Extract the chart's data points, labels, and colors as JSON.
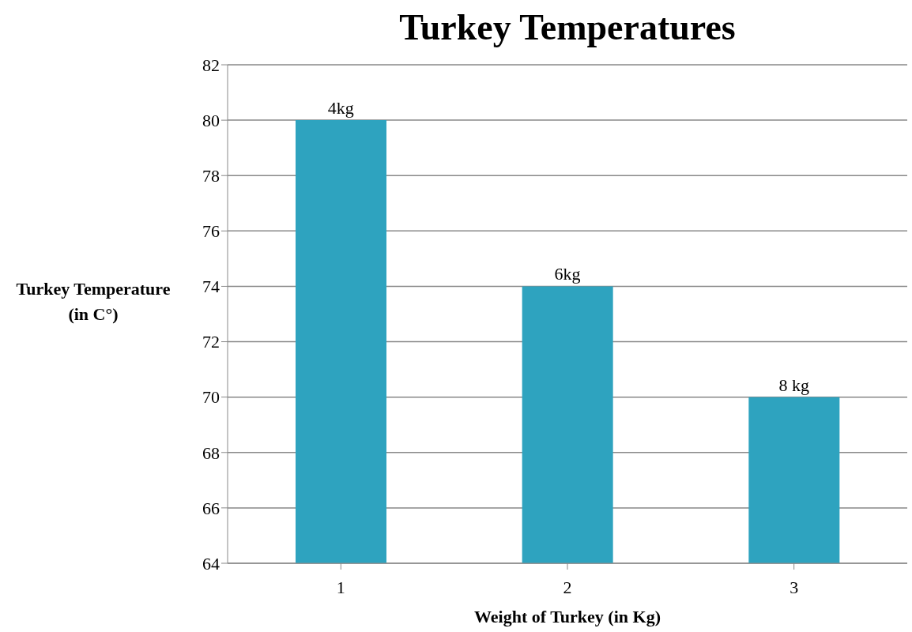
{
  "chart_data": {
    "type": "bar",
    "title": "Turkey Temperatures",
    "xlabel": "Weight of Turkey (in Kg)",
    "ylabel": "Turkey Temperature (in C°)",
    "categories": [
      "1",
      "2",
      "3"
    ],
    "values": [
      80,
      74,
      70
    ],
    "color": "#2ea3bf",
    "annotations": [
      {
        "text": "4kg",
        "x": "1",
        "y": 80
      },
      {
        "text": "6kg",
        "x": "2",
        "y": 74
      },
      {
        "text": "8 kg",
        "x": "3",
        "y": 70
      }
    ],
    "ylim": [
      64,
      82
    ],
    "yticks": [
      64,
      66,
      68,
      70,
      72,
      74,
      76,
      78,
      80,
      82
    ],
    "grid": "y"
  }
}
